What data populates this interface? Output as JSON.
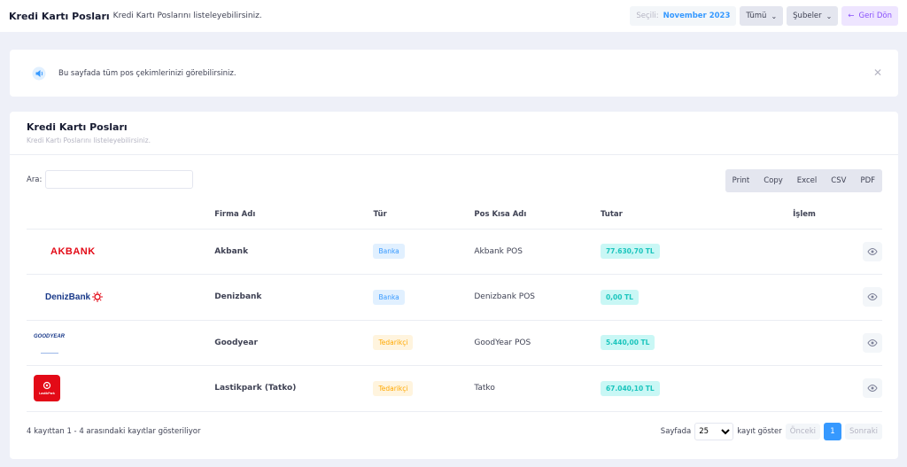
{
  "header": {
    "title": "Kredi Kartı Posları",
    "subtitle": "Kredi Kartı Poslarını listeleyebilirsiniz.",
    "selected_label": "Seçili:",
    "selected_value": "November 2023",
    "filter_all": "Tümü",
    "branches": "Şubeler",
    "back": "Geri Dön"
  },
  "notice": {
    "text": "Bu sayfada tüm pos çekimlerinizi görebilirsiniz.",
    "icon": "speaker-icon"
  },
  "card": {
    "title": "Kredi Kartı Posları",
    "subtitle": "Kredi Kartı Poslarını listeleyebilirsiniz."
  },
  "search": {
    "label": "Ara:",
    "value": "",
    "placeholder": ""
  },
  "exports": [
    "Print",
    "Copy",
    "Excel",
    "CSV",
    "PDF"
  ],
  "table": {
    "columns": [
      "",
      "Firma Adı",
      "Tür",
      "Pos Kısa Adı",
      "Tutar",
      "İşlem"
    ],
    "rows": [
      {
        "logo": "AKBANK",
        "company": "Akbank",
        "type": "Banka",
        "type_kind": "bank",
        "pos": "Akbank POS",
        "amount": "77.630,70 TL"
      },
      {
        "logo": "DenizBank",
        "company": "Denizbank",
        "type": "Banka",
        "type_kind": "bank",
        "pos": "Denizbank POS",
        "amount": "0,00 TL"
      },
      {
        "logo": "GOODYEAR",
        "company": "Goodyear",
        "type": "Tedarikçi",
        "type_kind": "supplier",
        "pos": "GoodYear POS",
        "amount": "5.440,00 TL"
      },
      {
        "logo": "LastikPark",
        "company": "Lastikpark (Tatko)",
        "type": "Tedarikçi",
        "type_kind": "supplier",
        "pos": "Tatko",
        "amount": "67.040,10 TL"
      }
    ]
  },
  "footer": {
    "info": "4 kayıttan 1 - 4 arasındaki kayıtlar gösteriliyor",
    "page_label": "Sayfada",
    "page_size": "25",
    "page_suffix": "kayıt göster",
    "prev": "Önceki",
    "current_page": "1",
    "next": "Sonraki"
  },
  "colors": {
    "primary": "#3699ff",
    "success_bg": "#c9f7f5",
    "success": "#1bc5bd",
    "warning": "#ffa800",
    "purple": "#8950fc"
  }
}
